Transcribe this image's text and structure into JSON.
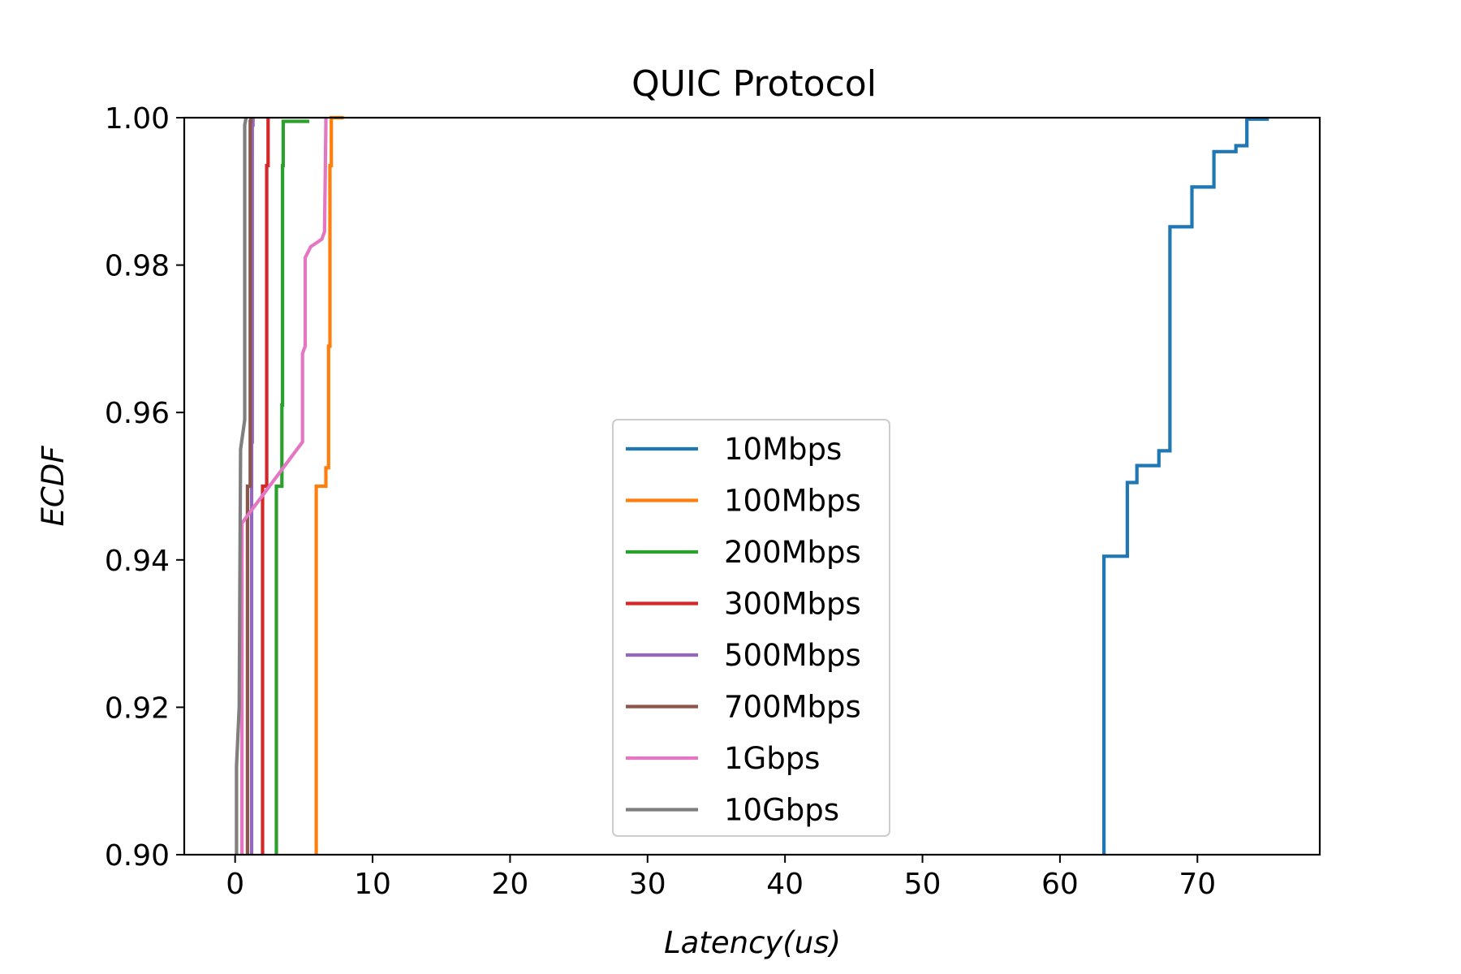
{
  "chart_data": {
    "type": "line",
    "title": "QUIC Protocol",
    "xlabel": "Latency(us)",
    "ylabel": "ECDF",
    "xlim": [
      -3.7,
      78.9
    ],
    "ylim": [
      0.9,
      1.0
    ],
    "x_ticks": [
      0,
      10,
      20,
      30,
      40,
      50,
      60,
      70
    ],
    "x_tick_labels": [
      "0",
      "10",
      "20",
      "30",
      "40",
      "50",
      "60",
      "70"
    ],
    "y_ticks": [
      0.9,
      0.92,
      0.94,
      0.96,
      0.98,
      1.0
    ],
    "y_tick_labels": [
      "0.90",
      "0.92",
      "0.94",
      "0.96",
      "0.98",
      "1.00"
    ],
    "grid": false,
    "legend_position": "center",
    "series": [
      {
        "name": "10Mbps",
        "color": "#1f77b4",
        "style": "step",
        "points": [
          [
            63.2,
            0.9
          ],
          [
            63.2,
            0.9405
          ],
          [
            64.9,
            0.9405
          ],
          [
            64.9,
            0.9505
          ],
          [
            65.6,
            0.9505
          ],
          [
            65.6,
            0.9528
          ],
          [
            67.2,
            0.9528
          ],
          [
            67.2,
            0.9548
          ],
          [
            68.0,
            0.9548
          ],
          [
            68.0,
            0.9852
          ],
          [
            69.6,
            0.9852
          ],
          [
            69.6,
            0.9906
          ],
          [
            71.2,
            0.9906
          ],
          [
            71.2,
            0.9954
          ],
          [
            72.8,
            0.9954
          ],
          [
            72.8,
            0.9962
          ],
          [
            73.6,
            0.9962
          ],
          [
            73.6,
            0.9998
          ],
          [
            75.2,
            0.9998
          ]
        ]
      },
      {
        "name": "100Mbps",
        "color": "#ff7f0e",
        "style": "step",
        "points": [
          [
            5.9,
            0.9
          ],
          [
            5.9,
            0.95
          ],
          [
            6.6,
            0.95
          ],
          [
            6.6,
            0.9525
          ],
          [
            6.8,
            0.9525
          ],
          [
            6.8,
            0.969
          ],
          [
            6.9,
            0.969
          ],
          [
            6.9,
            0.9935
          ],
          [
            7.0,
            0.9935
          ],
          [
            7.0,
            0.9995
          ],
          [
            7.0,
            1.0
          ],
          [
            7.9,
            1.0
          ]
        ]
      },
      {
        "name": "200Mbps",
        "color": "#2ca02c",
        "style": "step",
        "points": [
          [
            3.0,
            0.9
          ],
          [
            3.0,
            0.95
          ],
          [
            3.4,
            0.95
          ],
          [
            3.4,
            0.961
          ],
          [
            3.45,
            0.961
          ],
          [
            3.45,
            0.9935
          ],
          [
            3.5,
            0.9935
          ],
          [
            3.5,
            0.9995
          ],
          [
            5.4,
            0.9995
          ]
        ]
      },
      {
        "name": "300Mbps",
        "color": "#d62728",
        "style": "step",
        "points": [
          [
            2.0,
            0.9
          ],
          [
            2.0,
            0.95
          ],
          [
            2.3,
            0.95
          ],
          [
            2.3,
            0.9935
          ],
          [
            2.4,
            0.9935
          ],
          [
            2.4,
            1.0
          ]
        ]
      },
      {
        "name": "500Mbps",
        "color": "#9467bd",
        "style": "step",
        "points": [
          [
            1.2,
            0.9
          ],
          [
            1.2,
            0.956
          ],
          [
            1.25,
            0.956
          ],
          [
            1.25,
            0.999
          ],
          [
            1.3,
            0.999
          ],
          [
            1.3,
            1.0
          ]
        ]
      },
      {
        "name": "700Mbps",
        "color": "#8c564b",
        "style": "step",
        "points": [
          [
            0.9,
            0.9
          ],
          [
            0.9,
            0.95
          ],
          [
            1.1,
            0.95
          ],
          [
            1.1,
            0.9995
          ],
          [
            1.15,
            0.9995
          ],
          [
            1.15,
            1.0
          ]
        ]
      },
      {
        "name": "1Gbps",
        "color": "#e377c2",
        "style": "line",
        "points": [
          [
            0.5,
            0.9
          ],
          [
            0.5,
            0.945
          ],
          [
            4.9,
            0.956
          ],
          [
            4.9,
            0.968
          ],
          [
            5.1,
            0.969
          ],
          [
            5.1,
            0.981
          ],
          [
            5.5,
            0.9825
          ],
          [
            6.3,
            0.9835
          ],
          [
            6.5,
            0.9845
          ],
          [
            6.6,
            0.999
          ],
          [
            6.6,
            1.0
          ]
        ]
      },
      {
        "name": "10Gbps",
        "color": "#7f7f7f",
        "style": "line",
        "points": [
          [
            0.1,
            0.9
          ],
          [
            0.1,
            0.912
          ],
          [
            0.3,
            0.92
          ],
          [
            0.4,
            0.955
          ],
          [
            0.7,
            0.959
          ],
          [
            0.7,
            0.999
          ],
          [
            0.8,
            1.0
          ]
        ]
      }
    ]
  }
}
